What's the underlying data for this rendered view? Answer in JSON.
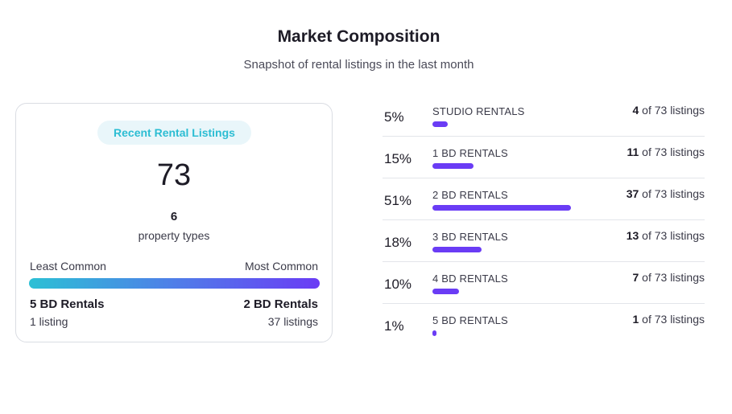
{
  "header": {
    "title": "Market Composition",
    "subtitle": "Snapshot of rental listings in the last month"
  },
  "summary": {
    "badge": "Recent Rental Listings",
    "total": "73",
    "types_count": "6",
    "types_label": "property types",
    "least_label": "Least Common",
    "most_label": "Most Common",
    "least_name": "5 BD Rentals",
    "least_count": "1 listing",
    "most_name": "2 BD Rentals",
    "most_count": "37 listings"
  },
  "colors": {
    "bar": "#6a3cf5",
    "gradient_start": "#2cc0d5",
    "gradient_end": "#6a3cf5",
    "badge_text": "#2cbdd3"
  },
  "breakdown": {
    "of_text": "of 73 listings",
    "items": [
      {
        "label": "STUDIO RENTALS",
        "percent": "5%",
        "count": "4",
        "share": 4
      },
      {
        "label": "1 BD RENTALS",
        "percent": "15%",
        "count": "11",
        "share": 11
      },
      {
        "label": "2 BD RENTALS",
        "percent": "51%",
        "count": "37",
        "share": 37
      },
      {
        "label": "3 BD RENTALS",
        "percent": "18%",
        "count": "13",
        "share": 13
      },
      {
        "label": "4 BD RENTALS",
        "percent": "10%",
        "count": "7",
        "share": 7
      },
      {
        "label": "5 BD RENTALS",
        "percent": "1%",
        "count": "1",
        "share": 1
      }
    ]
  }
}
